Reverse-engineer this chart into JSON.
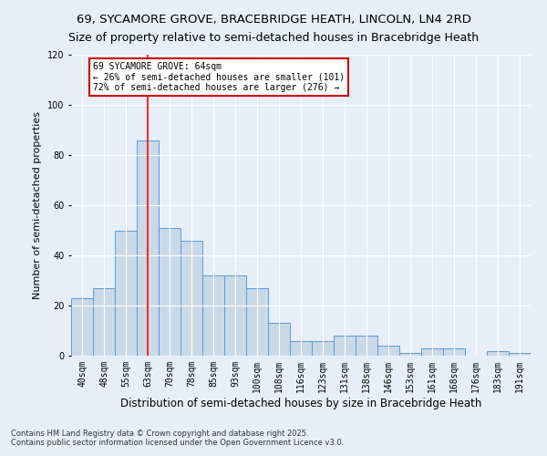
{
  "title": "69, SYCAMORE GROVE, BRACEBRIDGE HEATH, LINCOLN, LN4 2RD",
  "subtitle": "Size of property relative to semi-detached houses in Bracebridge Heath",
  "xlabel": "Distribution of semi-detached houses by size in Bracebridge Heath",
  "ylabel": "Number of semi-detached properties",
  "categories": [
    "40sqm",
    "48sqm",
    "55sqm",
    "63sqm",
    "70sqm",
    "78sqm",
    "85sqm",
    "93sqm",
    "100sqm",
    "108sqm",
    "116sqm",
    "123sqm",
    "131sqm",
    "138sqm",
    "146sqm",
    "153sqm",
    "161sqm",
    "168sqm",
    "176sqm",
    "183sqm",
    "191sqm"
  ],
  "values": [
    23,
    27,
    50,
    86,
    51,
    46,
    32,
    32,
    27,
    13,
    6,
    6,
    8,
    8,
    4,
    1,
    3,
    3,
    0,
    2,
    1
  ],
  "bar_color": "#c9d9e8",
  "bar_edge_color": "#5b9bd5",
  "highlight_index": 3,
  "annotation_text": "69 SYCAMORE GROVE: 64sqm\n← 26% of semi-detached houses are smaller (101)\n72% of semi-detached houses are larger (276) →",
  "annotation_box_color": "#ffffff",
  "annotation_box_edge_color": "#cc0000",
  "ylim": [
    0,
    120
  ],
  "yticks": [
    0,
    20,
    40,
    60,
    80,
    100,
    120
  ],
  "footer_text": "Contains HM Land Registry data © Crown copyright and database right 2025.\nContains public sector information licensed under the Open Government Licence v3.0.",
  "background_color": "#e8eef8",
  "grid_color": "#ffffff",
  "title_fontsize": 9.5,
  "tick_fontsize": 7,
  "ylabel_fontsize": 8,
  "xlabel_fontsize": 8.5,
  "footer_fontsize": 6
}
